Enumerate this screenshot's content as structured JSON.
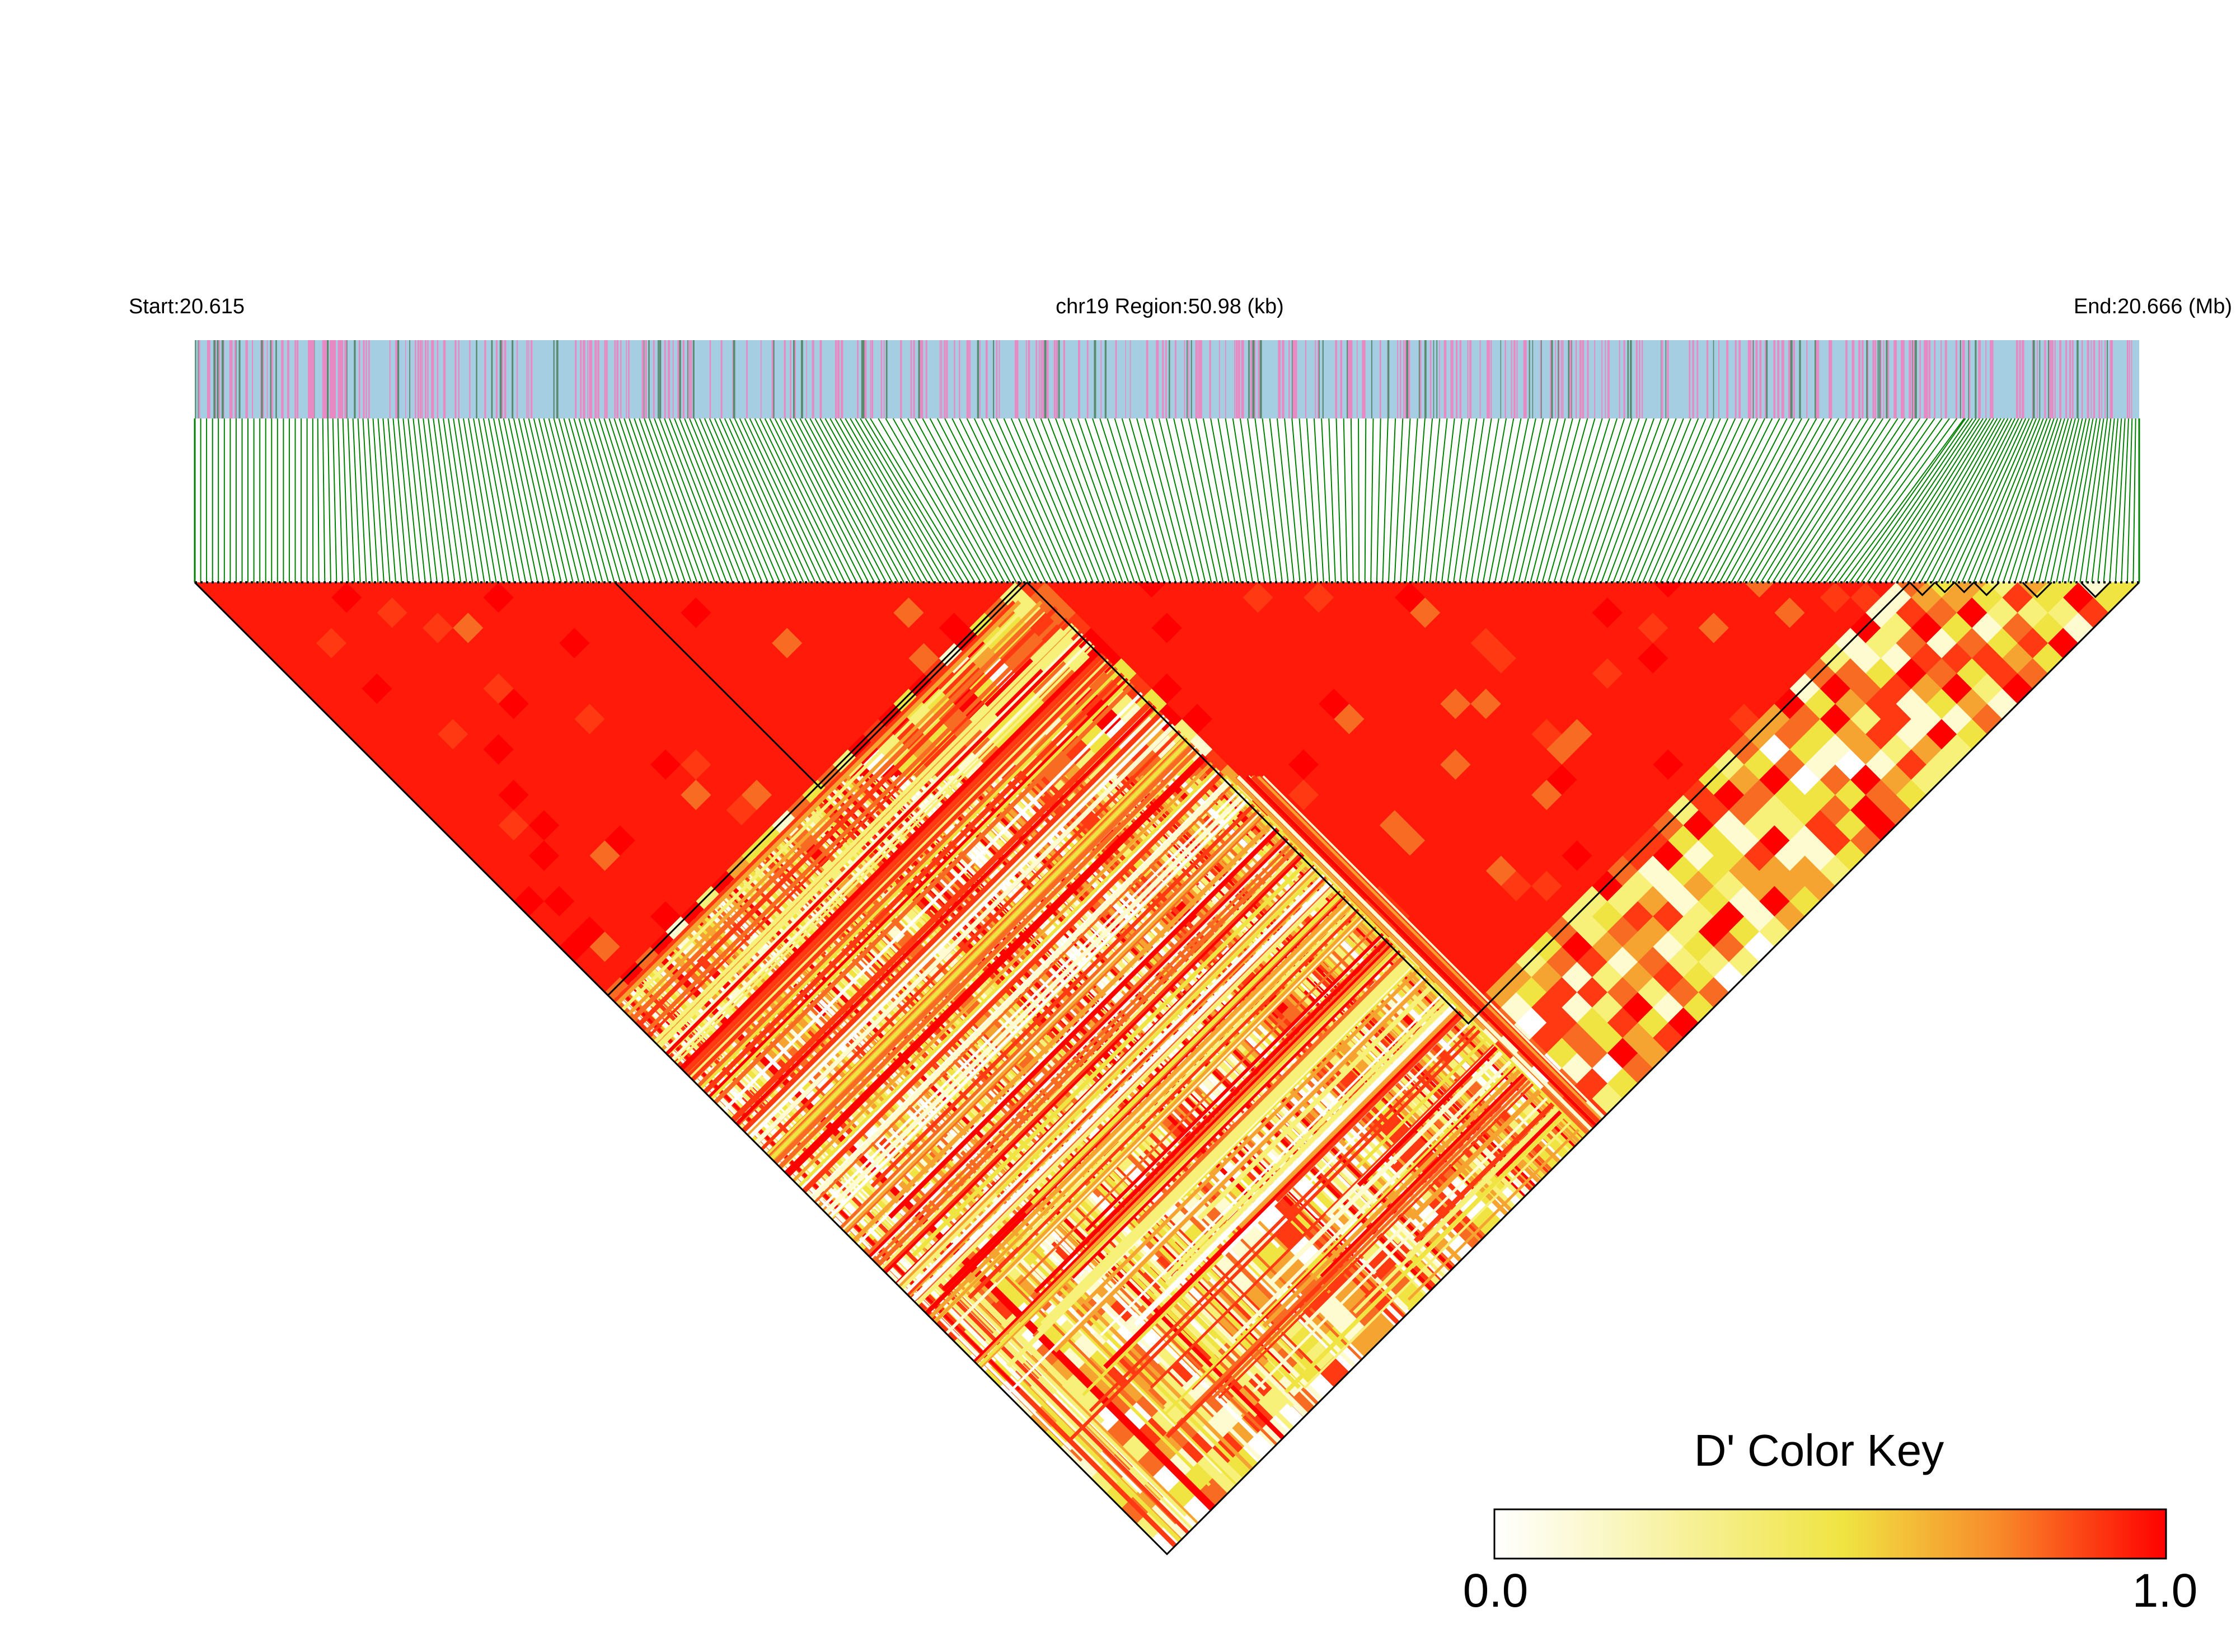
{
  "chart_data": {
    "type": "heatmap",
    "subtype": "linkage-disequilibrium-triangle",
    "chromosome": "chr19",
    "start_label": "Start:20.615",
    "region_label": "chr19 Region:50.98 (kb)",
    "end_label": "End:20.666 (Mb)",
    "start_mb": 20.615,
    "end_mb": 20.666,
    "region_kb": 50.98,
    "metric": "D'",
    "color_key": {
      "title": "D' Color Key",
      "min_label": "0.0",
      "max_label": "1.0",
      "min": 0.0,
      "max": 1.0,
      "colors": [
        "#ffffff",
        "#f0e442",
        "#ff0000"
      ]
    },
    "haplotype_blocks": [
      {
        "start_index": 0,
        "end_index": 0.425
      },
      {
        "start_index": 0.216,
        "end_index": 0.428
      },
      {
        "start_index": 0.428,
        "end_index": 0.882
      },
      {
        "start_index": 0.882,
        "end_index": 0.895
      },
      {
        "start_index": 0.895,
        "end_index": 0.905
      },
      {
        "start_index": 0.905,
        "end_index": 0.915
      },
      {
        "start_index": 0.915,
        "end_index": 0.928
      },
      {
        "start_index": 0.94,
        "end_index": 0.955
      },
      {
        "start_index": 0.97,
        "end_index": 0.985
      }
    ],
    "snp_track_colors": {
      "background": "#a6cee3",
      "minor": "#e78ac3",
      "other": "#5a8a70"
    },
    "connector_color": "#008000",
    "grid": false
  }
}
